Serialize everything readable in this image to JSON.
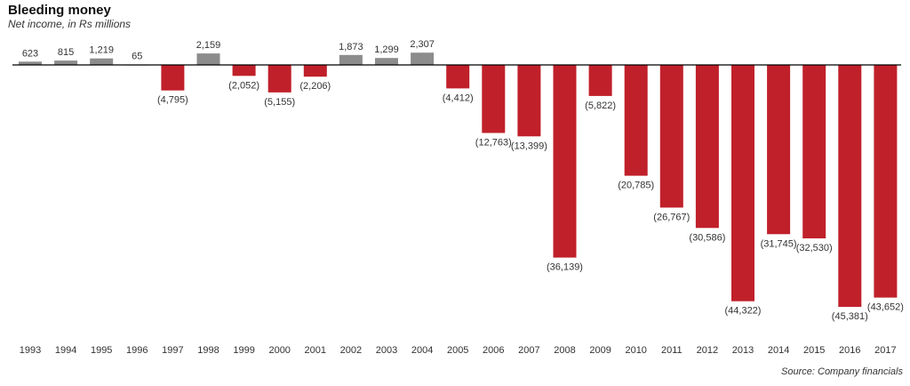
{
  "chart_data": {
    "type": "bar",
    "title": "Bleeding money",
    "subtitle": "Net income, in Rs millions",
    "source": "Source: Company financials",
    "categories": [
      "1993",
      "1994",
      "1995",
      "1996",
      "1997",
      "1998",
      "1999",
      "2000",
      "2001",
      "2002",
      "2003",
      "2004",
      "2005",
      "2006",
      "2007",
      "2008",
      "2009",
      "2010",
      "2011",
      "2012",
      "2013",
      "2014",
      "2015",
      "2016",
      "2017"
    ],
    "values": [
      623,
      815,
      1219,
      65,
      -4795,
      2159,
      -2052,
      -5155,
      -2206,
      1873,
      1299,
      2307,
      -4412,
      -12763,
      -13399,
      -36139,
      -5822,
      -20785,
      -26767,
      -30586,
      -44322,
      -31745,
      -32530,
      -45381,
      -43652
    ],
    "value_labels": [
      "623",
      "815",
      "1,219",
      "65",
      "(4,795)",
      "2,159",
      "(2,052)",
      "(5,155)",
      "(2,206)",
      "1,873",
      "1,299",
      "2,307",
      "(4,412)",
      "(12,763)",
      "(13,399)",
      "(36,139)",
      "(5,822)",
      "(20,785)",
      "(26,767)",
      "(30,586)",
      "(44,322)",
      "(31,745)",
      "(32,530)",
      "(45,381)",
      "(43,652)"
    ],
    "colors": {
      "positive": "#8c8c8c",
      "negative": "#c0202a",
      "axis": "#000000"
    },
    "grid": false,
    "legend": "none"
  }
}
